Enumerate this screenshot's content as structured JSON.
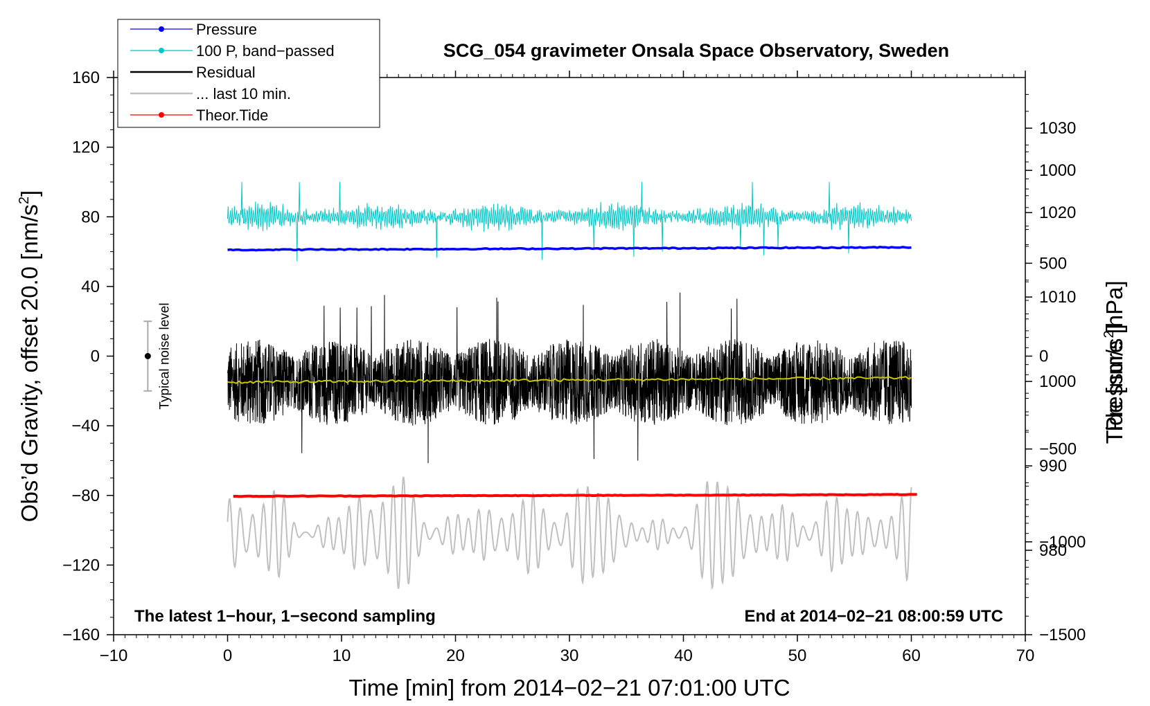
{
  "chart_data": {
    "type": "line",
    "title": "SCG_054 gravimeter Onsala Space Observatory, Sweden",
    "xlabel": "Time [min] from 2014−02−21 07:01:00 UTC",
    "ylabel": "Obs’d Gravity, offset 20.0 [nm/s",
    "ylabel_sup": "2",
    "ylabel_close": "]",
    "y2label": "Pressure [hPa]",
    "y3label": "Tide [nm/s",
    "y3label_sup": "2",
    "y3label_close": "]",
    "xlim": [
      -10,
      70
    ],
    "ylim": [
      -160,
      160
    ],
    "pressure_axis_range": [
      970,
      1036
    ],
    "tide_axis_range": [
      -1500,
      1500
    ],
    "x_ticks": [
      -10,
      0,
      10,
      20,
      30,
      40,
      50,
      60,
      70
    ],
    "x_tick_labels": [
      "−10",
      "0",
      "10",
      "20",
      "30",
      "40",
      "50",
      "60",
      "70"
    ],
    "y_ticks": [
      -160,
      -120,
      -80,
      -40,
      0,
      40,
      80,
      120,
      160
    ],
    "y_tick_labels": [
      "−160",
      "−120",
      "−80",
      "−40",
      "0",
      "40",
      "80",
      "120",
      "160"
    ],
    "pressure_ticks": [
      980,
      990,
      1000,
      1010,
      1020,
      1030
    ],
    "pressure_tick_labels": [
      "980",
      "990",
      "1000",
      "1010",
      "1020",
      "1030"
    ],
    "tide_ticks": [
      -1500,
      -1000,
      -500,
      0,
      500,
      1000
    ],
    "tide_tick_labels": [
      "−1500",
      "−1000",
      "−500",
      "0",
      "500",
      "1000"
    ],
    "legend": {
      "placement": "top-left",
      "entries": [
        {
          "label": "Pressure",
          "color": "#0000ff",
          "marker": true
        },
        {
          "label": "100 P, band−passed",
          "color": "#00c8c8",
          "marker": true
        },
        {
          "label": "Residual",
          "color": "#000000",
          "marker": false
        },
        {
          "label": "... last 10 min.",
          "color": "#c0c0c0",
          "marker": false
        },
        {
          "label": "Theor.Tide",
          "color": "#ff0000",
          "marker": true
        }
      ]
    },
    "noise_bar": {
      "label": "Typical noise level",
      "x": -7,
      "center": 0,
      "half_range": 20
    },
    "annotations": {
      "left": "The latest 1−hour, 1−second sampling",
      "right": "End at 2014−02−21 08:00:59 UTC"
    },
    "series": [
      {
        "name": "Pressure",
        "color": "#0000ff",
        "x_range": [
          0,
          60
        ],
        "level_start": 61,
        "level_end": 62.5
      },
      {
        "name": "100 P, band-passed",
        "color": "#00c8c8",
        "x_range": [
          0,
          60
        ],
        "mean": 80,
        "amplitude": 8
      },
      {
        "name": "Residual",
        "color": "#000000",
        "x_range": [
          0,
          60
        ],
        "mean": -15,
        "amplitude": 25
      },
      {
        "name": "Residual smoothed",
        "color": "#c8c800",
        "x_range": [
          0,
          60
        ],
        "level_start": -15,
        "level_end": -12.5
      },
      {
        "name": "... last 10 min.",
        "color": "#c0c0c0",
        "x_range": [
          0,
          60
        ],
        "mean": -102,
        "amplitude": 25
      },
      {
        "name": "Theor.Tide",
        "color": "#ff0000",
        "x_range": [
          0.5,
          60.5
        ],
        "level_start": -80.5,
        "level_end": -79.5
      }
    ]
  }
}
